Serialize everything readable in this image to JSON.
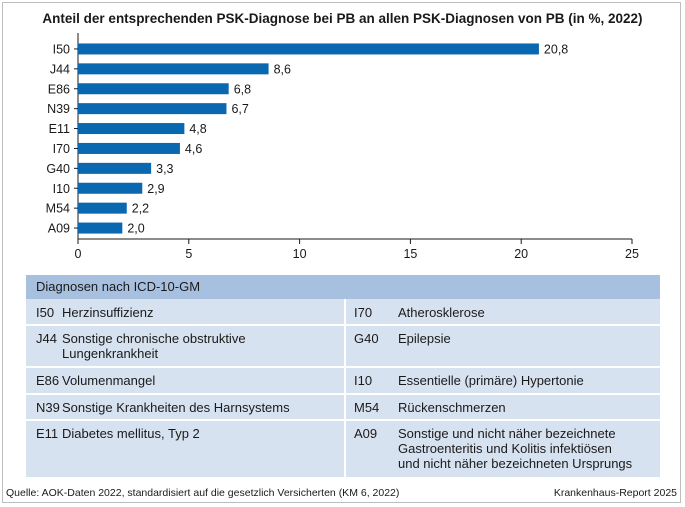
{
  "chart_data": {
    "type": "bar",
    "orientation": "horizontal",
    "title": "Anteil der entsprechenden PSK-Diagnose bei PB an allen PSK-Diagnosen von PB (in %, 2022)",
    "categories": [
      "I50",
      "J44",
      "E86",
      "N39",
      "E11",
      "I70",
      "G40",
      "I10",
      "M54",
      "A09"
    ],
    "values": [
      20.8,
      8.6,
      6.8,
      6.7,
      4.8,
      4.6,
      3.3,
      2.9,
      2.2,
      2.0
    ],
    "value_labels": [
      "20,8",
      "8,6",
      "6,8",
      "6,7",
      "4,8",
      "4,6",
      "3,3",
      "2,9",
      "2,2",
      "2,0"
    ],
    "xlim": [
      0,
      25
    ],
    "xticks": [
      0,
      5,
      10,
      15,
      20,
      25
    ],
    "xlabel": "",
    "ylabel": "",
    "grid": false,
    "bar_color": "#0a68b0"
  },
  "legend": {
    "heading": "Diagnosen nach ICD-10-GM",
    "rows": [
      [
        {
          "code": "I50",
          "desc": "Herzinsuffizienz"
        },
        {
          "code": "I70",
          "desc": "Atherosklerose"
        }
      ],
      [
        {
          "code": "J44",
          "desc": "Sonstige chronische obstruktive\nLungenkrankheit"
        },
        {
          "code": "G40",
          "desc": "Epilepsie"
        }
      ],
      [
        {
          "code": "E86",
          "desc": "Volumenmangel"
        },
        {
          "code": "I10",
          "desc": "Essentielle (primäre) Hypertonie"
        }
      ],
      [
        {
          "code": "N39",
          "desc": "Sonstige Krankheiten des Harnsystems"
        },
        {
          "code": "M54",
          "desc": "Rückenschmerzen"
        }
      ],
      [
        {
          "code": "E11",
          "desc": "Diabetes mellitus, Typ 2"
        },
        {
          "code": "A09",
          "desc": "Sonstige und nicht näher bezeichnete\nGastroenteritis und Kolitis infektiösen\nund nicht näher bezeichneten Ursprungs"
        }
      ]
    ]
  },
  "footer": {
    "source": "Quelle: AOK-Daten 2022, standardisiert auf die gesetzlich Versicherten (KM 6, 2022)",
    "report": "Krankenhaus-Report 2025"
  },
  "colors": {
    "legend_header": "#a8c0e0",
    "legend_body": "#d7e2f1"
  }
}
